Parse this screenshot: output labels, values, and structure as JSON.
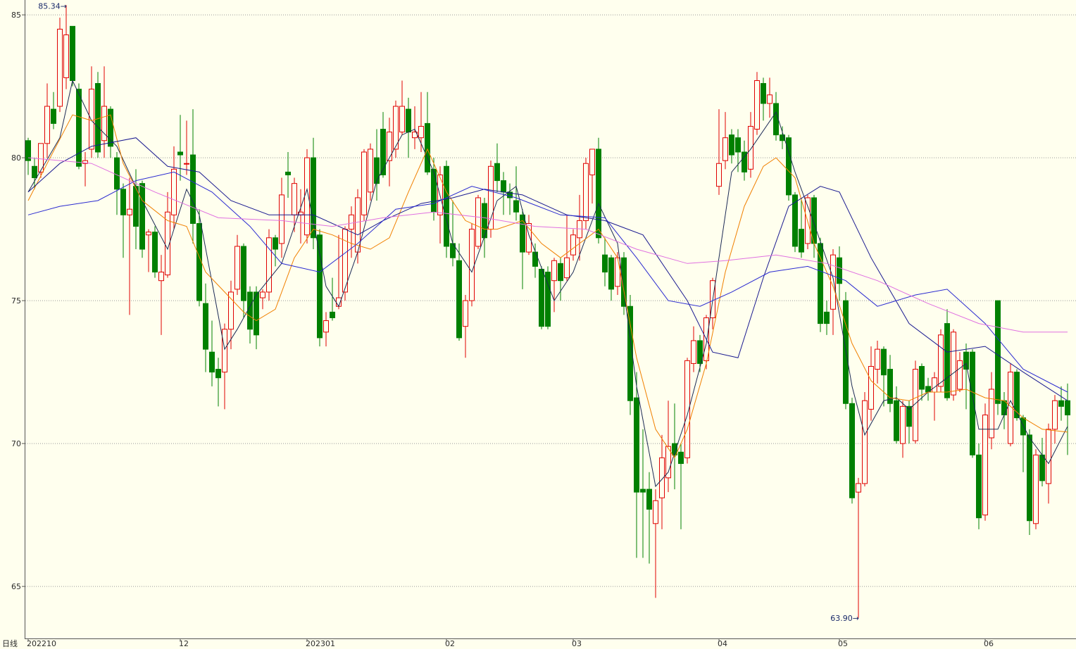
{
  "chart_data": {
    "type": "candlestick",
    "period_label": "日线",
    "categories": [
      "202210",
      null,
      null,
      null,
      null,
      null,
      null,
      null,
      null,
      null,
      null,
      null,
      null,
      null,
      null,
      null,
      null,
      null,
      null,
      null,
      null,
      null,
      null,
      null,
      "12",
      null,
      null,
      null,
      null,
      null,
      null,
      null,
      null,
      null,
      null,
      null,
      null,
      null,
      null,
      null,
      null,
      null,
      null,
      null,
      "202301",
      null,
      null,
      null,
      null,
      null,
      null,
      null,
      null,
      null,
      null,
      null,
      null,
      null,
      null,
      null,
      null,
      null,
      null,
      null,
      null,
      null,
      "02",
      null,
      null,
      null,
      null,
      null,
      null,
      null,
      null,
      null,
      null,
      null,
      null,
      null,
      null,
      null,
      null,
      null,
      null,
      null,
      "03",
      null,
      null,
      null,
      null,
      null,
      null,
      null,
      null,
      null,
      null,
      null,
      null,
      null,
      null,
      null,
      null,
      null,
      null,
      null,
      null,
      null,
      null,
      "04",
      null,
      null,
      null,
      null,
      null,
      null,
      null,
      null,
      null,
      null,
      null,
      null,
      null,
      null,
      null,
      null,
      null,
      null,
      "05",
      null,
      null,
      null,
      null,
      null,
      null,
      null,
      null,
      null,
      null,
      null,
      null,
      null,
      null,
      null,
      null,
      null,
      null,
      null,
      null,
      null,
      null,
      "06",
      null,
      null,
      null,
      null,
      null,
      null,
      null,
      null,
      null,
      null,
      null,
      null,
      null
    ],
    "open": [
      80.6,
      79.7,
      79.5,
      80.5,
      81.7,
      81.8,
      82.8,
      84.6,
      82.4,
      79.8,
      80.3,
      82.6,
      80.6,
      81.7,
      80.0,
      78.9,
      78.0,
      79.0,
      79.1,
      77.3,
      77.4,
      75.7,
      75.9,
      78.0,
      80.2,
      79.8,
      80.1,
      77.7,
      74.9,
      73.2,
      72.6,
      72.5,
      74.0,
      75.4,
      76.9,
      75.3,
      75.3,
      75.1,
      75.3,
      77.2,
      77.0,
      79.5,
      78.0,
      78.0,
      77.3,
      80.0,
      77.3,
      73.9,
      74.6,
      74.8,
      75.3,
      77.5,
      76.7,
      78.0,
      78.8,
      80.0,
      81.0,
      79.9,
      80.3,
      80.9,
      81.7,
      80.7,
      80.7,
      81.2,
      79.6,
      78.0,
      79.7,
      77.0,
      76.4,
      74.1,
      75.0,
      76.9,
      78.4,
      77.5,
      79.8,
      79.2,
      78.8,
      78.5,
      78.0,
      76.7,
      76.7,
      76.1,
      76.0,
      75.7,
      76.3,
      75.8,
      76.6,
      77.2,
      77.8,
      79.4,
      80.3,
      76.6,
      76.5,
      75.5,
      76.5,
      74.8,
      71.6,
      68.4,
      68.4,
      67.2,
      68.1,
      68.8,
      70.0,
      69.7,
      69.5,
      72.8,
      73.6,
      72.9,
      74.4,
      79.0,
      79.9,
      80.8,
      80.7,
      80.2,
      79.6,
      81.0,
      82.6,
      81.9,
      81.9,
      80.8,
      80.7,
      78.7,
      77.5,
      77.0,
      78.6,
      77.0,
      74.6,
      74.7,
      76.5,
      75.0,
      71.4,
      68.3,
      68.6,
      71.2,
      72.6,
      73.3,
      72.6,
      71.5,
      70.0,
      71.3,
      70.1,
      72.7,
      72.0,
      71.8,
      72.0,
      74.2,
      71.7,
      71.9,
      73.2,
      73.2,
      69.6,
      67.5,
      70.2,
      75.0,
      71.5,
      70.0,
      72.5,
      70.9,
      70.3,
      67.2,
      69.6,
      68.6,
      70.5,
      71.5,
      71.5
    ],
    "high": [
      80.7,
      80.0,
      80.5,
      82.6,
      82.3,
      84.9,
      85.34,
      84.6,
      82.6,
      80.2,
      83.2,
      83.0,
      83.2,
      81.8,
      80.2,
      79.1,
      79.3,
      79.6,
      79.2,
      77.5,
      77.6,
      76.6,
      78.8,
      80.4,
      81.5,
      81.3,
      81.7,
      78.2,
      75.6,
      74.3,
      73.0,
      74.2,
      75.7,
      77.3,
      77.0,
      75.5,
      75.5,
      75.4,
      77.5,
      77.3,
      79.3,
      80.2,
      79.3,
      78.9,
      80.3,
      80.7,
      77.5,
      74.6,
      75.8,
      77.3,
      77.6,
      78.3,
      78.9,
      80.3,
      80.5,
      81.0,
      81.6,
      81.4,
      82.0,
      82.7,
      82.1,
      81.8,
      82.3,
      82.3,
      80.0,
      79.7,
      79.9,
      78.5,
      77.0,
      75.2,
      77.7,
      78.7,
      78.6,
      79.9,
      80.5,
      79.5,
      79.1,
      79.7,
      78.2,
      78.0,
      77.0,
      76.2,
      76.2,
      76.5,
      76.5,
      78.0,
      77.5,
      78.7,
      80.0,
      80.3,
      80.7,
      77.2,
      76.6,
      76.7,
      76.7,
      75.2,
      72.5,
      70.5,
      69.0,
      68.4,
      70.3,
      71.5,
      71.4,
      70.0,
      73.0,
      74.1,
      73.8,
      74.5,
      75.8,
      81.7,
      81.6,
      81.0,
      81.0,
      80.6,
      81.6,
      83.0,
      82.8,
      82.8,
      82.3,
      81.1,
      80.8,
      78.8,
      78.6,
      78.7,
      78.7,
      77.2,
      75.0,
      76.8,
      76.9,
      75.3,
      71.6,
      68.8,
      71.8,
      73.4,
      73.6,
      73.4,
      73.1,
      72.0,
      71.5,
      71.5,
      72.9,
      72.8,
      72.3,
      72.5,
      74.0,
      74.7,
      74.0,
      73.2,
      73.5,
      73.3,
      70.0,
      71.4,
      72.5,
      75.0,
      71.8,
      72.8,
      72.6,
      71.0,
      70.5,
      69.8,
      70.2,
      70.7,
      71.7,
      72.0,
      72.1
    ],
    "low": [
      79.4,
      78.9,
      79.3,
      80.0,
      81.0,
      81.6,
      82.4,
      82.5,
      79.6,
      79.0,
      80.0,
      80.0,
      80.0,
      80.0,
      78.0,
      76.5,
      74.5,
      76.8,
      76.5,
      76.0,
      75.8,
      73.8,
      75.8,
      77.5,
      79.2,
      79.4,
      77.0,
      74.8,
      72.5,
      72.0,
      71.3,
      71.2,
      73.3,
      75.2,
      74.4,
      73.5,
      73.3,
      74.7,
      75.0,
      76.2,
      76.5,
      78.6,
      77.4,
      77.0,
      77.0,
      76.8,
      73.4,
      73.4,
      74.3,
      74.7,
      75.0,
      76.5,
      76.3,
      77.8,
      78.5,
      78.5,
      79.3,
      79.0,
      80.0,
      80.8,
      80.0,
      80.3,
      80.2,
      79.4,
      77.8,
      77.0,
      76.5,
      76.2,
      73.6,
      73.0,
      74.8,
      76.8,
      76.5,
      77.2,
      78.8,
      78.0,
      78.0,
      77.8,
      75.4,
      76.6,
      75.8,
      74.0,
      74.0,
      74.6,
      75.0,
      75.7,
      76.4,
      76.4,
      77.5,
      78.4,
      77.0,
      75.5,
      75.0,
      75.2,
      74.5,
      71.0,
      66.0,
      66.0,
      65.8,
      64.6,
      67.0,
      68.3,
      68.4,
      67.0,
      69.3,
      72.5,
      72.5,
      72.6,
      74.0,
      78.7,
      79.6,
      79.8,
      79.5,
      79.2,
      79.3,
      80.8,
      81.3,
      81.4,
      80.6,
      80.3,
      78.5,
      76.7,
      76.5,
      76.8,
      76.5,
      73.9,
      73.8,
      73.8,
      75.0,
      71.2,
      67.9,
      63.9,
      68.5,
      70.8,
      72.1,
      71.3,
      71.1,
      70.0,
      69.5,
      70.0,
      70.0,
      71.5,
      71.5,
      70.8,
      71.8,
      71.5,
      71.5,
      71.8,
      71.2,
      69.5,
      67.0,
      67.3,
      69.8,
      71.0,
      70.5,
      69.9,
      70.8,
      69.0,
      66.8,
      67.0,
      68.5,
      67.9,
      70.0,
      70.8,
      69.6
    ],
    "close": [
      79.9,
      79.3,
      80.5,
      81.8,
      81.2,
      84.5,
      84.3,
      82.7,
      79.7,
      79.9,
      82.4,
      80.2,
      81.8,
      80.4,
      78.9,
      78.0,
      78.2,
      77.6,
      76.8,
      77.4,
      76.0,
      76.0,
      78.1,
      79.6,
      80.1,
      79.8,
      77.7,
      75.0,
      73.3,
      72.5,
      72.3,
      74.0,
      75.3,
      76.9,
      75.0,
      74.0,
      73.8,
      75.3,
      77.2,
      76.8,
      78.7,
      79.4,
      79.1,
      78.1,
      80.0,
      77.2,
      73.7,
      74.3,
      74.4,
      75.1,
      77.5,
      78.0,
      78.6,
      80.2,
      80.3,
      79.1,
      79.4,
      80.9,
      81.8,
      81.8,
      80.9,
      80.9,
      81.1,
      79.5,
      78.1,
      79.4,
      76.9,
      76.5,
      73.7,
      75.0,
      77.5,
      78.6,
      77.2,
      79.7,
      79.2,
      78.8,
      78.6,
      78.1,
      76.7,
      77.7,
      76.2,
      74.1,
      74.1,
      76.4,
      75.7,
      76.5,
      77.3,
      77.8,
      79.8,
      80.3,
      77.2,
      76.0,
      75.4,
      76.5,
      74.8,
      71.5,
      68.3,
      68.3,
      67.7,
      68.0,
      69.5,
      69.9,
      69.6,
      69.3,
      72.9,
      73.6,
      72.8,
      74.4,
      75.7,
      79.8,
      80.7,
      80.1,
      80.2,
      79.5,
      81.1,
      82.7,
      81.9,
      82.2,
      80.8,
      80.6,
      78.7,
      76.9,
      76.7,
      78.6,
      77.0,
      74.2,
      74.2,
      76.6,
      75.6,
      71.4,
      68.1,
      68.6,
      71.5,
      72.7,
      73.3,
      72.4,
      71.4,
      70.1,
      71.3,
      70.6,
      72.6,
      71.9,
      71.8,
      72.3,
      73.8,
      71.6,
      73.9,
      72.9,
      72.6,
      69.6,
      67.4,
      71.0,
      71.9,
      71.4,
      71.0,
      72.5,
      70.9,
      70.3,
      67.3,
      69.6,
      68.7,
      70.5,
      71.5,
      71.3,
      71.0
    ],
    "up_color": "#e00000",
    "down_color": "#008000",
    "series": [
      {
        "color": "#1c2a55",
        "x": [
          0,
          5,
          7,
          10,
          14,
          18,
          22,
          25,
          27,
          31,
          33,
          36,
          40,
          44,
          47,
          49,
          52,
          55,
          59,
          61,
          64,
          67,
          70,
          74,
          77,
          79,
          83,
          86,
          90,
          93,
          96,
          99,
          101,
          104,
          107,
          109,
          111,
          114,
          118,
          121,
          124,
          127,
          130,
          132,
          135,
          137,
          139,
          142,
          145,
          148,
          150,
          153,
          155,
          158,
          161,
          164
        ],
        "values": [
          78.8,
          80.7,
          82.7,
          81.3,
          80.4,
          78.5,
          76.8,
          78.9,
          78.0,
          73.3,
          74.0,
          75.2,
          76.3,
          78.9,
          75.5,
          74.8,
          76.7,
          79.2,
          80.8,
          81.0,
          79.5,
          77.0,
          76.0,
          78.5,
          79.0,
          77.3,
          75.0,
          76.0,
          78.4,
          77.0,
          72.0,
          68.5,
          69.0,
          71.0,
          73.5,
          76.5,
          79.5,
          80.3,
          81.6,
          79.5,
          77.7,
          75.8,
          72.0,
          70.3,
          71.5,
          71.6,
          71.2,
          71.8,
          72.3,
          72.8,
          70.5,
          70.5,
          71.5,
          70.2,
          69.3,
          70.6
        ]
      },
      {
        "color": "#f08000",
        "x": [
          0,
          3,
          7,
          10,
          13,
          15,
          18,
          22,
          25,
          28,
          31,
          34,
          36,
          39,
          42,
          45,
          48,
          51,
          54,
          57,
          60,
          63,
          66,
          69,
          72,
          74,
          78,
          81,
          84,
          87,
          90,
          93,
          96,
          99,
          102,
          104,
          107,
          110,
          113,
          116,
          118,
          121,
          124,
          127,
          130,
          133,
          136,
          139,
          142,
          145,
          148,
          151,
          154,
          157,
          160,
          164
        ],
        "values": [
          78.5,
          79.8,
          81.5,
          81.3,
          81.5,
          79.8,
          78.5,
          77.8,
          77.6,
          76.0,
          75.3,
          74.6,
          74.3,
          74.7,
          76.5,
          77.5,
          77.3,
          77.0,
          76.8,
          77.2,
          78.8,
          80.3,
          78.8,
          77.8,
          77.5,
          77.5,
          77.8,
          77.0,
          76.5,
          77.0,
          77.5,
          76.5,
          73.0,
          70.5,
          69.5,
          70.5,
          72.8,
          76.0,
          78.3,
          79.7,
          80.0,
          79.3,
          77.0,
          75.5,
          73.5,
          72.2,
          71.6,
          71.5,
          71.8,
          71.8,
          71.9,
          71.6,
          71.5,
          70.9,
          70.5,
          70.4
        ]
      },
      {
        "color": "#1a1a90",
        "x": [
          0,
          5,
          10,
          17,
          22,
          27,
          32,
          38,
          45,
          52,
          56,
          62,
          67,
          72,
          78,
          85,
          91,
          97,
          104,
          108,
          112,
          116,
          120,
          125,
          128,
          133,
          139,
          145,
          151,
          157,
          164
        ],
        "values": [
          78.8,
          79.8,
          80.4,
          80.7,
          79.7,
          79.5,
          78.5,
          78.0,
          78.0,
          77.3,
          77.8,
          78.4,
          78.6,
          78.9,
          78.7,
          78.0,
          77.8,
          77.3,
          75.0,
          73.2,
          73.0,
          75.8,
          78.3,
          79.0,
          78.8,
          76.5,
          74.2,
          73.2,
          73.4,
          72.5,
          71.5
        ]
      },
      {
        "color": "#2a2ad0",
        "x": [
          0,
          5,
          11,
          17,
          23,
          29,
          35,
          40,
          46,
          52,
          58,
          64,
          70,
          77,
          84,
          91,
          96,
          101,
          106,
          111,
          117,
          123,
          129,
          134,
          140,
          145,
          151,
          157,
          164
        ],
        "values": [
          78.0,
          78.3,
          78.5,
          79.2,
          79.5,
          78.8,
          77.6,
          76.3,
          76.0,
          77.0,
          78.2,
          78.4,
          79.0,
          78.6,
          78.0,
          77.9,
          76.5,
          75.0,
          74.8,
          75.3,
          76.0,
          76.2,
          75.7,
          74.8,
          75.2,
          75.4,
          74.2,
          72.6,
          71.8
        ]
      },
      {
        "color": "#e070e0",
        "x": [
          0,
          10,
          20,
          30,
          40,
          48,
          56,
          64,
          72,
          80,
          88,
          96,
          104,
          110,
          118,
          126,
          134,
          142,
          150,
          157,
          164
        ],
        "values": [
          80.0,
          79.8,
          78.8,
          77.9,
          77.8,
          77.6,
          77.9,
          78.1,
          77.9,
          77.6,
          77.5,
          76.8,
          76.3,
          76.4,
          76.6,
          76.3,
          75.7,
          74.9,
          74.2,
          73.9,
          73.9
        ]
      }
    ],
    "annotations": [
      {
        "value": 85.34,
        "label": "85.34→"
      },
      {
        "value": 63.9,
        "label": "63.90→"
      }
    ],
    "ylim": [
      63.18,
      85.52
    ],
    "yticks": [
      65,
      70,
      75,
      80,
      85
    ],
    "grid": true
  }
}
